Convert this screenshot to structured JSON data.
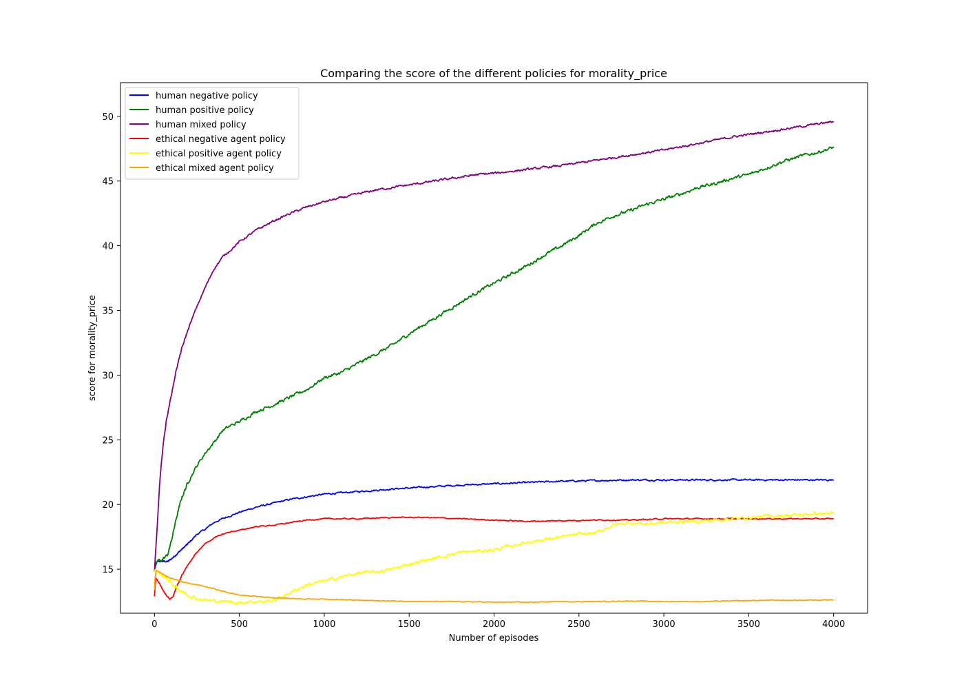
{
  "chart_data": {
    "type": "line",
    "title": "Comparing the score of the different policies for morality_price",
    "xlabel": "Number of episodes",
    "ylabel": "score for morality_price",
    "xlim": [
      -200,
      4200
    ],
    "ylim": [
      11.6,
      52.6
    ],
    "xticks": [
      0,
      500,
      1000,
      1500,
      2000,
      2500,
      3000,
      3500,
      4000
    ],
    "yticks": [
      15,
      20,
      25,
      30,
      35,
      40,
      45,
      50
    ],
    "grid": false,
    "legend_position": "upper left",
    "series": [
      {
        "name": "human negative policy",
        "color": "#0000ff",
        "noise": 0.06,
        "x": [
          0,
          5,
          15,
          30,
          50,
          80,
          100,
          150,
          200,
          250,
          300,
          350,
          400,
          500,
          600,
          700,
          800,
          900,
          1000,
          1200,
          1400,
          1600,
          1800,
          2000,
          2200,
          2400,
          2600,
          2800,
          3000,
          3200,
          3400,
          3600,
          3800,
          4000
        ],
        "y": [
          14.8,
          15.2,
          15.6,
          15.6,
          15.6,
          15.6,
          15.8,
          16.4,
          17.0,
          17.7,
          18.1,
          18.6,
          18.9,
          19.4,
          19.8,
          20.1,
          20.4,
          20.6,
          20.8,
          21.0,
          21.2,
          21.35,
          21.5,
          21.6,
          21.7,
          21.8,
          21.85,
          21.9,
          21.9,
          21.9,
          21.9,
          21.9,
          21.9,
          21.9
        ]
      },
      {
        "name": "human positive policy",
        "color": "#008000",
        "noise": 0.12,
        "x": [
          0,
          5,
          20,
          50,
          80,
          100,
          130,
          160,
          200,
          250,
          300,
          350,
          400,
          450,
          500,
          600,
          700,
          800,
          900,
          1000,
          1100,
          1200,
          1300,
          1400,
          1500,
          1600,
          1700,
          1800,
          1900,
          2000,
          2100,
          2200,
          2300,
          2400,
          2500,
          2600,
          2700,
          2800,
          2900,
          3000,
          3100,
          3200,
          3300,
          3400,
          3500,
          3600,
          3700,
          3800,
          3900,
          4000
        ],
        "y": [
          14.8,
          15.4,
          15.7,
          15.7,
          16.2,
          17.2,
          19.0,
          20.5,
          21.8,
          23.0,
          24.0,
          24.8,
          25.7,
          26.1,
          26.4,
          27.2,
          27.7,
          28.3,
          28.9,
          29.8,
          30.2,
          30.9,
          31.6,
          32.3,
          33.2,
          34.0,
          34.8,
          35.6,
          36.4,
          37.1,
          37.8,
          38.5,
          39.3,
          40.0,
          40.8,
          41.7,
          42.3,
          42.7,
          43.2,
          43.6,
          44.0,
          44.5,
          44.8,
          45.2,
          45.5,
          46.0,
          46.5,
          46.9,
          47.2,
          47.6
        ]
      },
      {
        "name": "human mixed policy",
        "color": "#800080",
        "noise": 0.08,
        "x": [
          0,
          5,
          15,
          30,
          50,
          70,
          100,
          130,
          160,
          200,
          250,
          300,
          350,
          400,
          450,
          500,
          600,
          700,
          800,
          900,
          1000,
          1100,
          1200,
          1300,
          1400,
          1500,
          1600,
          1700,
          1800,
          1900,
          2000,
          2200,
          2400,
          2600,
          2800,
          3000,
          3200,
          3400,
          3600,
          3800,
          4000
        ],
        "y": [
          14.8,
          16.0,
          18.0,
          21.5,
          24.5,
          26.5,
          28.5,
          30.5,
          32.0,
          33.6,
          35.3,
          36.8,
          38.2,
          39.1,
          39.7,
          40.3,
          41.2,
          41.9,
          42.5,
          43.0,
          43.4,
          43.7,
          44.0,
          44.3,
          44.5,
          44.7,
          44.9,
          45.1,
          45.3,
          45.5,
          45.6,
          45.9,
          46.2,
          46.6,
          47.0,
          47.4,
          47.9,
          48.4,
          48.8,
          49.2,
          49.6
        ]
      },
      {
        "name": "ethical negative agent policy",
        "color": "#ff0000",
        "noise": 0.04,
        "x": [
          0,
          3,
          8,
          15,
          30,
          50,
          70,
          90,
          110,
          130,
          160,
          200,
          250,
          300,
          350,
          400,
          450,
          500,
          600,
          700,
          800,
          900,
          1000,
          1200,
          1400,
          1600,
          1800,
          2000,
          2200,
          2400,
          2600,
          2800,
          3000,
          3200,
          3400,
          3600,
          3800,
          4000
        ],
        "y": [
          12.9,
          13.6,
          14.3,
          14.2,
          13.9,
          13.4,
          13.0,
          12.7,
          12.9,
          13.6,
          14.5,
          15.4,
          16.3,
          17.0,
          17.4,
          17.7,
          17.9,
          18.0,
          18.3,
          18.4,
          18.6,
          18.8,
          18.9,
          18.9,
          19.0,
          19.0,
          18.9,
          18.8,
          18.7,
          18.75,
          18.8,
          18.8,
          18.9,
          18.9,
          18.9,
          18.9,
          18.9,
          18.9
        ]
      },
      {
        "name": "ethical positive agent policy",
        "color": "#ffff00",
        "noise": 0.12,
        "x": [
          0,
          5,
          15,
          40,
          80,
          120,
          160,
          200,
          260,
          320,
          400,
          450,
          500,
          550,
          600,
          650,
          700,
          760,
          800,
          900,
          1000,
          1100,
          1200,
          1300,
          1400,
          1500,
          1600,
          1700,
          1800,
          1900,
          2000,
          2100,
          2200,
          2300,
          2400,
          2500,
          2600,
          2700,
          2800,
          2900,
          3000,
          3100,
          3200,
          3300,
          3400,
          3500,
          3600,
          3700,
          3800,
          3900,
          4000
        ],
        "y": [
          14.8,
          15.0,
          14.9,
          14.6,
          14.2,
          13.7,
          13.3,
          13.0,
          12.7,
          12.6,
          12.5,
          12.5,
          12.4,
          12.5,
          12.5,
          12.5,
          12.6,
          12.9,
          13.2,
          13.8,
          14.1,
          14.4,
          14.7,
          14.8,
          15.0,
          15.4,
          15.7,
          16.0,
          16.3,
          16.4,
          16.5,
          16.8,
          17.1,
          17.3,
          17.5,
          17.7,
          17.8,
          18.4,
          18.6,
          18.5,
          18.6,
          18.7,
          18.7,
          18.8,
          18.9,
          19.0,
          19.1,
          19.15,
          19.2,
          19.3,
          19.3
        ]
      },
      {
        "name": "ethical mixed agent policy",
        "color": "#ffa500",
        "noise": 0.03,
        "x": [
          0,
          3,
          10,
          25,
          50,
          100,
          150,
          200,
          250,
          300,
          350,
          400,
          450,
          500,
          600,
          700,
          800,
          900,
          1000,
          1200,
          1400,
          1600,
          1800,
          2000,
          2200,
          2400,
          2600,
          2800,
          3000,
          3200,
          3400,
          3600,
          3800,
          4000
        ],
        "y": [
          13.4,
          14.3,
          14.9,
          14.8,
          14.6,
          14.3,
          14.1,
          13.9,
          13.8,
          13.65,
          13.5,
          13.3,
          13.15,
          13.0,
          12.9,
          12.8,
          12.75,
          12.7,
          12.7,
          12.6,
          12.55,
          12.5,
          12.5,
          12.45,
          12.45,
          12.5,
          12.5,
          12.55,
          12.5,
          12.5,
          12.55,
          12.6,
          12.6,
          12.65
        ]
      }
    ]
  }
}
